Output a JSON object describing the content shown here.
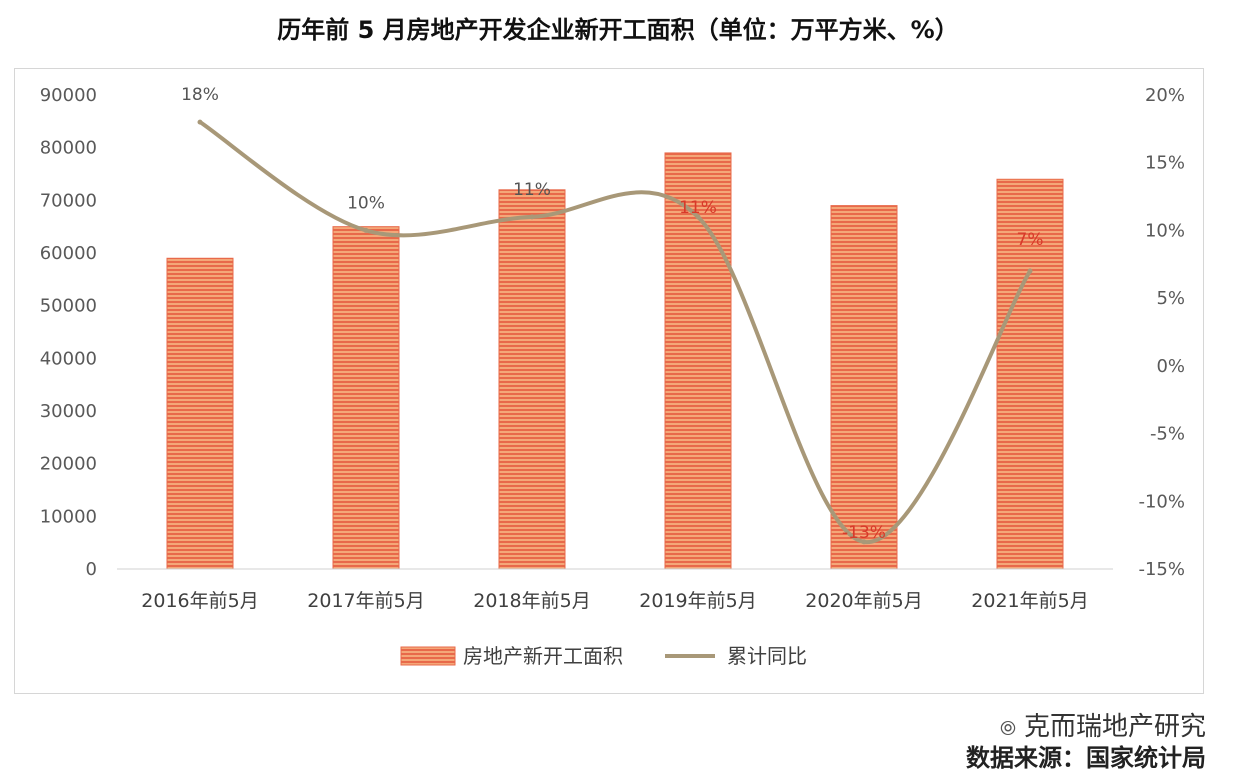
{
  "title": "历年前 5 月房地产开发企业新开工面积（单位：万平方米、%）",
  "colors": {
    "bar_fill": "#e8694a",
    "bar_stripe": "#f2a06e",
    "line": "#a89878",
    "label_red": "#d83a2a",
    "label_grey": "#555555"
  },
  "watermark": {
    "line1": "克而瑞地产研究",
    "line2": "数据来源：国家统计局",
    "icon": "wechat-icon"
  },
  "chart_data": {
    "type": "bar",
    "title": "",
    "categories": [
      "2016年前5月",
      "2017年前5月",
      "2018年前5月",
      "2019年前5月",
      "2020年前5月",
      "2021年前5月"
    ],
    "series": [
      {
        "name": "房地产新开工面积",
        "type": "bar",
        "axis": "left",
        "values": [
          59000,
          65000,
          72000,
          79000,
          69000,
          74000
        ]
      },
      {
        "name": "累计同比",
        "type": "line",
        "axis": "right",
        "values": [
          18,
          10,
          11,
          11,
          -13,
          7
        ],
        "labels": [
          "18%",
          "10%",
          "11%",
          "11%",
          "-13%",
          "7%"
        ]
      }
    ],
    "left_axis": {
      "ylim": [
        0,
        90000
      ],
      "ticks": [
        "0",
        "10000",
        "20000",
        "30000",
        "40000",
        "50000",
        "60000",
        "70000",
        "80000",
        "90000"
      ]
    },
    "right_axis": {
      "ylim": [
        -15,
        20
      ],
      "ticks": [
        "-15%",
        "-10%",
        "-5%",
        "0%",
        "5%",
        "10%",
        "15%",
        "20%"
      ]
    },
    "grid": false,
    "legend": "bottom"
  }
}
